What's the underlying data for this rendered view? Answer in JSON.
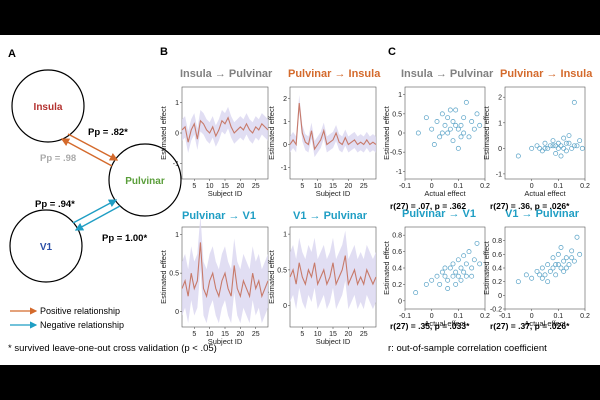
{
  "colors": {
    "gray": "#808080",
    "orange": "#d46a2c",
    "teal": "#1f9ec4",
    "green": "#5a9e3a",
    "red": "#b3312f",
    "blue": "#2c4fa6",
    "band": "#d9d6f0",
    "line": "#c77a6a"
  },
  "panelA": {
    "label": "A",
    "nodes": {
      "insula": "Insula",
      "pulvinar": "Pulvinar",
      "v1": "V1"
    },
    "pp_insula_pulvinar_gray": "Pp = .98",
    "pp_insula_pulvinar_orange": "Pp = .82*",
    "pp_v1_pulvinar_teal": "Pp = .94*",
    "pp_pulvinar_v1_teal": "Pp = 1.00*",
    "legend": {
      "positive": "Positive relationship",
      "negative": "Negative relationship"
    }
  },
  "panelB": {
    "label": "B",
    "titles": {
      "tl": {
        "from": "Insula",
        "to": "Pulvinar"
      },
      "tr": {
        "from": "Pulvinar",
        "to": "Insula"
      },
      "bl": {
        "from": "Pulvinar",
        "to": "V1"
      },
      "br": {
        "from": "V1",
        "to": "Pulvinar"
      }
    },
    "xlabel": "Subject ID",
    "ylabel": "Estimated effect"
  },
  "panelC": {
    "label": "C",
    "titles": {
      "tl": {
        "from": "Insula",
        "to": "Pulvinar"
      },
      "tr": {
        "from": "Pulvinar",
        "to": "Insula"
      },
      "bl": {
        "from": "Pulvinar",
        "to": "V1"
      },
      "br": {
        "from": "V1",
        "to": "Pulvinar"
      }
    },
    "xlabel": "Actual effect",
    "ylabel": "Estimated effect",
    "stats": {
      "top": {
        "left": "r(27) = .07, p = .362",
        "right": "r(27) = .36, p = .026*"
      },
      "bottom": {
        "left": "r(27) = .35, p = .033*",
        "right": "r(27) = .37, p = .026*"
      }
    }
  },
  "footnote_left": "* survived leave-one-out cross validation (p < .05)",
  "footnote_right": "r: out-of-sample correlation coefficient",
  "chart_data": [
    {
      "type": "line",
      "id": "b_tl",
      "title": "Insula → Pulvinar",
      "xlabel": "Subject ID",
      "ylabel": "Estimated effect",
      "xlim": [
        1,
        29
      ],
      "ylim": [
        -1.5,
        1.5
      ],
      "xticks": [
        5,
        10,
        15,
        20,
        25
      ],
      "yticks": [
        1,
        0,
        -1
      ],
      "x": [
        1,
        2,
        3,
        4,
        5,
        6,
        7,
        8,
        9,
        10,
        11,
        12,
        13,
        14,
        15,
        16,
        17,
        18,
        19,
        20,
        21,
        22,
        23,
        24,
        25,
        26,
        27,
        28,
        29
      ],
      "series": [
        {
          "values": [
            0.1,
            0.2,
            -0.3,
            0.1,
            0.3,
            -0.2,
            0.4,
            0.3,
            0.1,
            0.0,
            0.2,
            -0.1,
            0.1,
            0.4,
            0.3,
            0.5,
            0.2,
            0.0,
            0.1,
            0.2,
            0.1,
            0.3,
            0.1,
            0.0,
            0.2,
            0.1,
            0.3,
            0.2,
            0.1
          ]
        }
      ]
    },
    {
      "type": "line",
      "id": "b_tr",
      "title": "Pulvinar → Insula",
      "xlabel": "Subject ID",
      "ylabel": "Estimated effect",
      "xlim": [
        1,
        29
      ],
      "ylim": [
        -1.5,
        2.5
      ],
      "xticks": [
        5,
        10,
        15,
        20,
        25
      ],
      "yticks": [
        2,
        1,
        0,
        -1
      ],
      "x": [
        1,
        2,
        3,
        4,
        5,
        6,
        7,
        8,
        9,
        10,
        11,
        12,
        13,
        14,
        15,
        16,
        17,
        18,
        19,
        20,
        21,
        22,
        23,
        24,
        25,
        26,
        27,
        28,
        29
      ],
      "series": [
        {
          "values": [
            0.0,
            0.2,
            0.0,
            1.8,
            0.5,
            0.1,
            0.0,
            0.6,
            -0.2,
            0.0,
            0.2,
            0.6,
            0.0,
            0.1,
            0.2,
            0.5,
            0.1,
            0.0,
            0.3,
            0.0,
            0.1,
            0.2,
            0.0,
            0.1,
            0.0,
            0.2,
            0.0,
            0.1,
            0.0
          ]
        }
      ]
    },
    {
      "type": "line",
      "id": "b_bl",
      "title": "Pulvinar → V1",
      "xlabel": "Subject ID",
      "ylabel": "Estimated effect",
      "xlim": [
        1,
        29
      ],
      "ylim": [
        -0.2,
        1.1
      ],
      "xticks": [
        5,
        10,
        15,
        20,
        25
      ],
      "yticks": [
        1,
        0.5,
        0
      ],
      "x": [
        1,
        2,
        3,
        4,
        5,
        6,
        7,
        8,
        9,
        10,
        11,
        12,
        13,
        14,
        15,
        16,
        17,
        18,
        19,
        20,
        21,
        22,
        23,
        24,
        25,
        26,
        27,
        28,
        29
      ],
      "series": [
        {
          "values": [
            0.3,
            0.4,
            0.2,
            0.5,
            0.3,
            0.4,
            0.9,
            0.3,
            0.2,
            0.4,
            0.5,
            0.3,
            0.2,
            0.4,
            0.5,
            0.3,
            0.2,
            0.6,
            0.3,
            0.2,
            0.4,
            0.3,
            0.2,
            0.5,
            0.3,
            0.4,
            0.2,
            0.3,
            0.4
          ]
        }
      ]
    },
    {
      "type": "line",
      "id": "b_br",
      "title": "V1 → Pulvinar",
      "xlabel": "Subject ID",
      "ylabel": "Estimated effect",
      "xlim": [
        1,
        29
      ],
      "ylim": [
        -0.3,
        1.1
      ],
      "xticks": [
        5,
        10,
        15,
        20,
        25
      ],
      "yticks": [
        1,
        0.5,
        0
      ],
      "x": [
        1,
        2,
        3,
        4,
        5,
        6,
        7,
        8,
        9,
        10,
        11,
        12,
        13,
        14,
        15,
        16,
        17,
        18,
        19,
        20,
        21,
        22,
        23,
        24,
        25,
        26,
        27,
        28,
        29
      ],
      "series": [
        {
          "values": [
            0.4,
            0.5,
            0.3,
            0.6,
            0.4,
            0.3,
            0.5,
            0.4,
            0.6,
            0.3,
            0.4,
            0.5,
            0.3,
            0.4,
            0.6,
            0.3,
            0.4,
            0.5,
            0.7,
            0.3,
            0.4,
            0.5,
            0.3,
            0.4,
            0.3,
            0.5,
            0.4,
            0.3,
            0.4
          ]
        }
      ]
    },
    {
      "type": "scatter",
      "id": "c_tl",
      "title": "Insula → Pulvinar",
      "xlabel": "Actual effect",
      "ylabel": "Estimated effect",
      "xlim": [
        -0.1,
        0.2
      ],
      "ylim": [
        -1.2,
        1.2
      ],
      "xticks": [
        -0.1,
        0,
        0.1,
        0.2
      ],
      "yticks": [
        1,
        0.5,
        0,
        -0.5,
        -1
      ],
      "points": [
        [
          -0.02,
          0.4
        ],
        [
          0.0,
          0.1
        ],
        [
          0.02,
          0.3
        ],
        [
          0.03,
          -0.1
        ],
        [
          0.04,
          0.5
        ],
        [
          0.05,
          0.2
        ],
        [
          0.06,
          0.0
        ],
        [
          0.06,
          0.4
        ],
        [
          0.07,
          0.1
        ],
        [
          0.08,
          -0.2
        ],
        [
          0.08,
          0.3
        ],
        [
          0.09,
          0.6
        ],
        [
          0.1,
          0.1
        ],
        [
          0.1,
          -0.4
        ],
        [
          0.11,
          0.2
        ],
        [
          0.12,
          0.0
        ],
        [
          0.12,
          0.4
        ],
        [
          0.13,
          0.8
        ],
        [
          0.14,
          -0.1
        ],
        [
          0.15,
          0.3
        ],
        [
          0.16,
          0.1
        ],
        [
          0.17,
          0.5
        ],
        [
          -0.05,
          0.0
        ],
        [
          0.01,
          -0.3
        ],
        [
          0.18,
          0.2
        ],
        [
          0.04,
          0.0
        ],
        [
          0.09,
          0.2
        ],
        [
          0.11,
          -0.1
        ],
        [
          0.07,
          0.6
        ]
      ]
    },
    {
      "type": "scatter",
      "id": "c_tr",
      "title": "Pulvinar → Insula",
      "xlabel": "Actual effect",
      "ylabel": "Estimated effect",
      "xlim": [
        -0.1,
        0.2
      ],
      "ylim": [
        -1.2,
        2.4
      ],
      "xticks": [
        0,
        0.1,
        0.2
      ],
      "yticks": [
        2,
        1,
        0,
        -1
      ],
      "points": [
        [
          0.0,
          0.0
        ],
        [
          0.02,
          0.1
        ],
        [
          0.04,
          -0.1
        ],
        [
          0.05,
          0.2
        ],
        [
          0.06,
          0.0
        ],
        [
          0.07,
          0.1
        ],
        [
          0.08,
          0.3
        ],
        [
          0.09,
          -0.2
        ],
        [
          0.1,
          0.0
        ],
        [
          0.1,
          0.2
        ],
        [
          0.11,
          0.1
        ],
        [
          0.12,
          0.0
        ],
        [
          0.12,
          0.4
        ],
        [
          0.13,
          -0.1
        ],
        [
          0.14,
          0.2
        ],
        [
          0.15,
          0.0
        ],
        [
          0.16,
          1.8
        ],
        [
          0.17,
          0.1
        ],
        [
          0.18,
          0.3
        ],
        [
          0.19,
          0.0
        ],
        [
          -0.05,
          -0.3
        ],
        [
          0.03,
          0.0
        ],
        [
          0.08,
          0.1
        ],
        [
          0.11,
          -0.3
        ],
        [
          0.14,
          0.5
        ],
        [
          0.16,
          0.1
        ],
        [
          0.05,
          0.0
        ],
        [
          0.09,
          0.1
        ],
        [
          0.13,
          0.2
        ]
      ]
    },
    {
      "type": "scatter",
      "id": "c_bl",
      "title": "Pulvinar → V1",
      "xlabel": "Actual effect",
      "ylabel": "Estimated effect",
      "xlim": [
        -0.1,
        0.2
      ],
      "ylim": [
        -0.1,
        0.9
      ],
      "xticks": [
        -0.1,
        0,
        0.1,
        0.2
      ],
      "yticks": [
        0.8,
        0.6,
        0.4,
        0.2,
        0
      ],
      "points": [
        [
          -0.06,
          0.1
        ],
        [
          -0.02,
          0.2
        ],
        [
          0.0,
          0.25
        ],
        [
          0.02,
          0.3
        ],
        [
          0.03,
          0.2
        ],
        [
          0.04,
          0.35
        ],
        [
          0.05,
          0.3
        ],
        [
          0.06,
          0.25
        ],
        [
          0.07,
          0.4
        ],
        [
          0.08,
          0.3
        ],
        [
          0.08,
          0.45
        ],
        [
          0.09,
          0.35
        ],
        [
          0.1,
          0.3
        ],
        [
          0.1,
          0.5
        ],
        [
          0.11,
          0.4
        ],
        [
          0.12,
          0.35
        ],
        [
          0.12,
          0.55
        ],
        [
          0.13,
          0.3
        ],
        [
          0.14,
          0.6
        ],
        [
          0.15,
          0.4
        ],
        [
          0.16,
          0.5
        ],
        [
          0.17,
          0.7
        ],
        [
          0.18,
          0.45
        ],
        [
          0.06,
          0.15
        ],
        [
          0.09,
          0.2
        ],
        [
          0.13,
          0.45
        ],
        [
          0.15,
          0.3
        ],
        [
          0.05,
          0.4
        ],
        [
          0.11,
          0.25
        ]
      ]
    },
    {
      "type": "scatter",
      "id": "c_br",
      "title": "V1 → Pulvinar",
      "xlabel": "Actual effect",
      "ylabel": "Estimated effect",
      "xlim": [
        -0.1,
        0.2
      ],
      "ylim": [
        -0.2,
        1.0
      ],
      "xticks": [
        -0.1,
        0,
        0.1,
        0.2
      ],
      "yticks": [
        0.8,
        0.6,
        0.4,
        0.2,
        0,
        -0.2
      ],
      "points": [
        [
          -0.05,
          0.2
        ],
        [
          -0.02,
          0.3
        ],
        [
          0.0,
          0.25
        ],
        [
          0.02,
          0.35
        ],
        [
          0.03,
          0.3
        ],
        [
          0.04,
          0.4
        ],
        [
          0.05,
          0.3
        ],
        [
          0.06,
          0.45
        ],
        [
          0.07,
          0.35
        ],
        [
          0.08,
          0.4
        ],
        [
          0.08,
          0.55
        ],
        [
          0.09,
          0.3
        ],
        [
          0.1,
          0.45
        ],
        [
          0.1,
          0.6
        ],
        [
          0.11,
          0.4
        ],
        [
          0.12,
          0.5
        ],
        [
          0.12,
          0.35
        ],
        [
          0.13,
          0.55
        ],
        [
          0.14,
          0.45
        ],
        [
          0.15,
          0.65
        ],
        [
          0.16,
          0.5
        ],
        [
          0.17,
          0.85
        ],
        [
          0.18,
          0.6
        ],
        [
          0.06,
          0.2
        ],
        [
          0.09,
          0.45
        ],
        [
          0.13,
          0.4
        ],
        [
          0.15,
          0.55
        ],
        [
          0.11,
          0.7
        ],
        [
          0.04,
          0.25
        ]
      ]
    }
  ]
}
